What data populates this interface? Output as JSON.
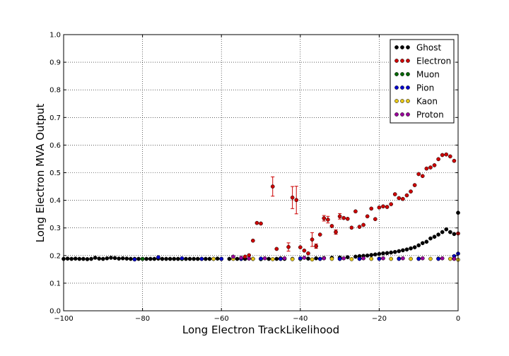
{
  "chart_data": {
    "type": "scatter",
    "xlabel": "Long Electron TrackLikelihood",
    "ylabel": "Long Electron MVA Output",
    "xlim": [
      -100,
      0
    ],
    "ylim": [
      0,
      1
    ],
    "xticks": [
      "−100",
      "−80",
      "−60",
      "−40",
      "−20",
      "0"
    ],
    "xtick_values": [
      -100,
      -80,
      -60,
      -40,
      -20,
      0
    ],
    "yticks": [
      "0.0",
      "0.1",
      "0.2",
      "0.3",
      "0.4",
      "0.5",
      "0.6",
      "0.7",
      "0.8",
      "0.9",
      "1.0"
    ],
    "ytick_values": [
      0,
      0.1,
      0.2,
      0.3,
      0.4,
      0.5,
      0.6,
      0.7,
      0.8,
      0.9,
      1.0
    ],
    "grid": true,
    "legend_position": "top-right",
    "series": [
      {
        "name": "Ghost",
        "color": "#000000",
        "points": [
          [
            -100,
            0.188
          ],
          [
            -99,
            0.189
          ],
          [
            -98,
            0.188
          ],
          [
            -97,
            0.189
          ],
          [
            -96,
            0.188
          ],
          [
            -95,
            0.188
          ],
          [
            -94,
            0.187
          ],
          [
            -93,
            0.188
          ],
          [
            -92,
            0.192
          ],
          [
            -91,
            0.189
          ],
          [
            -90,
            0.188
          ],
          [
            -89,
            0.19
          ],
          [
            -88,
            0.192
          ],
          [
            -87,
            0.191
          ],
          [
            -86,
            0.189
          ],
          [
            -85,
            0.19
          ],
          [
            -84,
            0.189
          ],
          [
            -83,
            0.188
          ],
          [
            -82,
            0.188
          ],
          [
            -81,
            0.188
          ],
          [
            -80,
            0.188
          ],
          [
            -79,
            0.188
          ],
          [
            -78,
            0.188
          ],
          [
            -77,
            0.188
          ],
          [
            -76,
            0.189
          ],
          [
            -75,
            0.188
          ],
          [
            -74,
            0.188
          ],
          [
            -73,
            0.188
          ],
          [
            -72,
            0.188
          ],
          [
            -71,
            0.188
          ],
          [
            -70,
            0.188
          ],
          [
            -69,
            0.188
          ],
          [
            -68,
            0.188
          ],
          [
            -67,
            0.188
          ],
          [
            -66,
            0.188
          ],
          [
            -65,
            0.188
          ],
          [
            -64,
            0.188
          ],
          [
            -63,
            0.188
          ],
          [
            -62,
            0.188
          ],
          [
            -61,
            0.189
          ],
          [
            -60,
            0.188
          ],
          [
            -58,
            0.188
          ],
          [
            -56,
            0.188
          ],
          [
            -54,
            0.188
          ],
          [
            -52,
            0.188
          ],
          [
            -50,
            0.188
          ],
          [
            -48,
            0.188
          ],
          [
            -46,
            0.188
          ],
          [
            -44,
            0.188
          ],
          [
            -42,
            0.188
          ],
          [
            -40,
            0.189
          ],
          [
            -38,
            0.189
          ],
          [
            -36,
            0.19
          ],
          [
            -34,
            0.191
          ],
          [
            -32,
            0.192
          ],
          [
            -30,
            0.193
          ],
          [
            -28,
            0.194
          ],
          [
            -26,
            0.196
          ],
          [
            -25,
            0.198
          ],
          [
            -24,
            0.199
          ],
          [
            -23,
            0.2
          ],
          [
            -22,
            0.202
          ],
          [
            -21,
            0.204
          ],
          [
            -20,
            0.206
          ],
          [
            -19,
            0.208
          ],
          [
            -18,
            0.209
          ],
          [
            -17,
            0.211
          ],
          [
            -16,
            0.213
          ],
          [
            -15,
            0.216
          ],
          [
            -14,
            0.219
          ],
          [
            -13,
            0.222
          ],
          [
            -12,
            0.226
          ],
          [
            -11,
            0.23
          ],
          [
            -10,
            0.237
          ],
          [
            -9,
            0.245
          ],
          [
            -8,
            0.25
          ],
          [
            -7,
            0.262
          ],
          [
            -6,
            0.268
          ],
          [
            -5,
            0.276
          ],
          [
            -4,
            0.285
          ],
          [
            -3,
            0.295
          ],
          [
            -2,
            0.285
          ],
          [
            -1,
            0.278
          ],
          [
            0,
            0.355
          ]
        ]
      },
      {
        "name": "Electron",
        "color": "#cc0000",
        "points": [
          [
            -54,
            0.196
          ],
          [
            -53,
            0.201
          ],
          [
            -52,
            0.254
          ],
          [
            -51,
            0.318
          ],
          [
            -50,
            0.316
          ],
          [
            -47,
            0.45
          ],
          [
            -46,
            0.224
          ],
          [
            -45,
            0.19
          ],
          [
            -43,
            0.231
          ],
          [
            -42,
            0.41
          ],
          [
            -41,
            0.401
          ],
          [
            -40,
            0.23
          ],
          [
            -39,
            0.218
          ],
          [
            -38,
            0.208
          ],
          [
            -37,
            0.258
          ],
          [
            -36,
            0.234
          ],
          [
            -35,
            0.276
          ],
          [
            -34,
            0.335
          ],
          [
            -33,
            0.33
          ],
          [
            -32,
            0.307
          ],
          [
            -31,
            0.285
          ],
          [
            -30,
            0.342
          ],
          [
            -29,
            0.336
          ],
          [
            -28,
            0.333
          ],
          [
            -27,
            0.301
          ],
          [
            -26,
            0.36
          ],
          [
            -25,
            0.304
          ],
          [
            -24,
            0.311
          ],
          [
            -23,
            0.342
          ],
          [
            -22,
            0.37
          ],
          [
            -21,
            0.332
          ],
          [
            -20,
            0.374
          ],
          [
            -19,
            0.378
          ],
          [
            -18,
            0.376
          ],
          [
            -17,
            0.386
          ],
          [
            -16,
            0.422
          ],
          [
            -15,
            0.408
          ],
          [
            -14,
            0.405
          ],
          [
            -13,
            0.418
          ],
          [
            -12,
            0.432
          ],
          [
            -11,
            0.455
          ],
          [
            -10,
            0.495
          ],
          [
            -9,
            0.488
          ],
          [
            -8,
            0.515
          ],
          [
            -7,
            0.519
          ],
          [
            -6,
            0.527
          ],
          [
            -5,
            0.549
          ],
          [
            -4,
            0.564
          ],
          [
            -3,
            0.566
          ],
          [
            -2,
            0.559
          ],
          [
            -1,
            0.543
          ],
          [
            0,
            0.28
          ]
        ],
        "errors": [
          [
            -47,
            0.035
          ],
          [
            -42,
            0.04
          ],
          [
            -41,
            0.05
          ],
          [
            -43,
            0.015
          ],
          [
            -37,
            0.025
          ],
          [
            -34,
            0.01
          ],
          [
            -33,
            0.012
          ],
          [
            -30,
            0.01
          ],
          [
            -31,
            0.008
          ],
          [
            -36,
            0.008
          ]
        ]
      },
      {
        "name": "Muon",
        "color": "#006600",
        "points": [
          [
            -80,
            0.188
          ],
          [
            -70,
            0.188
          ],
          [
            -60,
            0.188
          ],
          [
            -55,
            0.188
          ],
          [
            -50,
            0.187
          ],
          [
            -45,
            0.188
          ],
          [
            -40,
            0.188
          ],
          [
            -35,
            0.188
          ],
          [
            -30,
            0.188
          ],
          [
            -25,
            0.189
          ],
          [
            -20,
            0.189
          ],
          [
            -15,
            0.189
          ],
          [
            -10,
            0.189
          ],
          [
            -5,
            0.189
          ],
          [
            -1,
            0.189
          ]
        ]
      },
      {
        "name": "Pion",
        "color": "#0000cc",
        "points": [
          [
            -82,
            0.186
          ],
          [
            -76,
            0.194
          ],
          [
            -70,
            0.19
          ],
          [
            -65,
            0.188
          ],
          [
            -60,
            0.188
          ],
          [
            -55,
            0.188
          ],
          [
            -50,
            0.189
          ],
          [
            -45,
            0.188
          ],
          [
            -40,
            0.19
          ],
          [
            -35,
            0.188
          ],
          [
            -30,
            0.188
          ],
          [
            -25,
            0.188
          ],
          [
            -20,
            0.188
          ],
          [
            -15,
            0.188
          ],
          [
            -10,
            0.188
          ],
          [
            -5,
            0.188
          ],
          [
            -1,
            0.198
          ],
          [
            0,
            0.207
          ]
        ]
      },
      {
        "name": "Kaon",
        "color": "#e6c619",
        "points": [
          [
            -62,
            0.188
          ],
          [
            -57,
            0.188
          ],
          [
            -52,
            0.188
          ],
          [
            -47,
            0.187
          ],
          [
            -42,
            0.187
          ],
          [
            -37,
            0.186
          ],
          [
            -32,
            0.188
          ],
          [
            -27,
            0.187
          ],
          [
            -22,
            0.188
          ],
          [
            -17,
            0.188
          ],
          [
            -12,
            0.188
          ],
          [
            -7,
            0.188
          ],
          [
            -2,
            0.188
          ],
          [
            0,
            0.185
          ]
        ]
      },
      {
        "name": "Proton",
        "color": "#990099",
        "points": [
          [
            -57,
            0.196
          ],
          [
            -55,
            0.192
          ],
          [
            -53,
            0.189
          ],
          [
            -49,
            0.19
          ],
          [
            -44,
            0.19
          ],
          [
            -39,
            0.192
          ],
          [
            -34,
            0.19
          ],
          [
            -29,
            0.19
          ],
          [
            -24,
            0.19
          ],
          [
            -19,
            0.19
          ],
          [
            -14,
            0.19
          ],
          [
            -9,
            0.19
          ],
          [
            -4,
            0.19
          ],
          [
            -1,
            0.188
          ]
        ]
      }
    ]
  }
}
